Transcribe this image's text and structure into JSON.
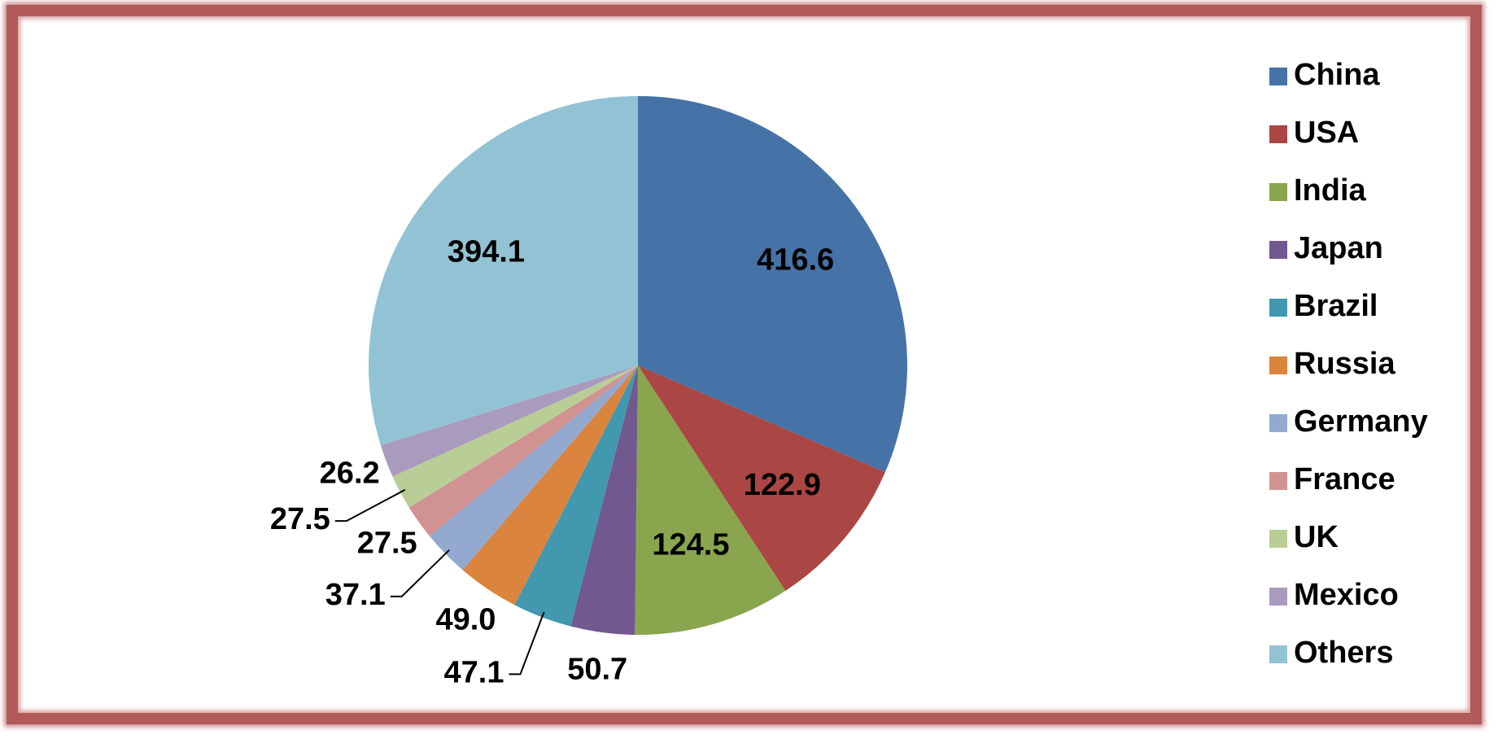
{
  "chart_data": {
    "type": "pie",
    "categories": [
      "China",
      "USA",
      "India",
      "Japan",
      "Brazil",
      "Russia",
      "Germany",
      "France",
      "UK",
      "Mexico",
      "Others"
    ],
    "values": [
      416.6,
      122.9,
      124.5,
      50.7,
      47.1,
      49.0,
      37.1,
      27.5,
      27.5,
      26.2,
      394.1
    ],
    "value_labels": [
      "416.6",
      "122.9",
      "124.5",
      "50.7",
      "47.1",
      "49.0",
      "37.1",
      "27.5",
      "27.5",
      "26.2",
      "394.1"
    ],
    "colors": [
      "#4572a7",
      "#aa4643",
      "#89a54e",
      "#71588f",
      "#4198af",
      "#db843d",
      "#93a9cf",
      "#d19392",
      "#b9cd96",
      "#a99bbd",
      "#92c3d4"
    ],
    "legend": "right"
  }
}
